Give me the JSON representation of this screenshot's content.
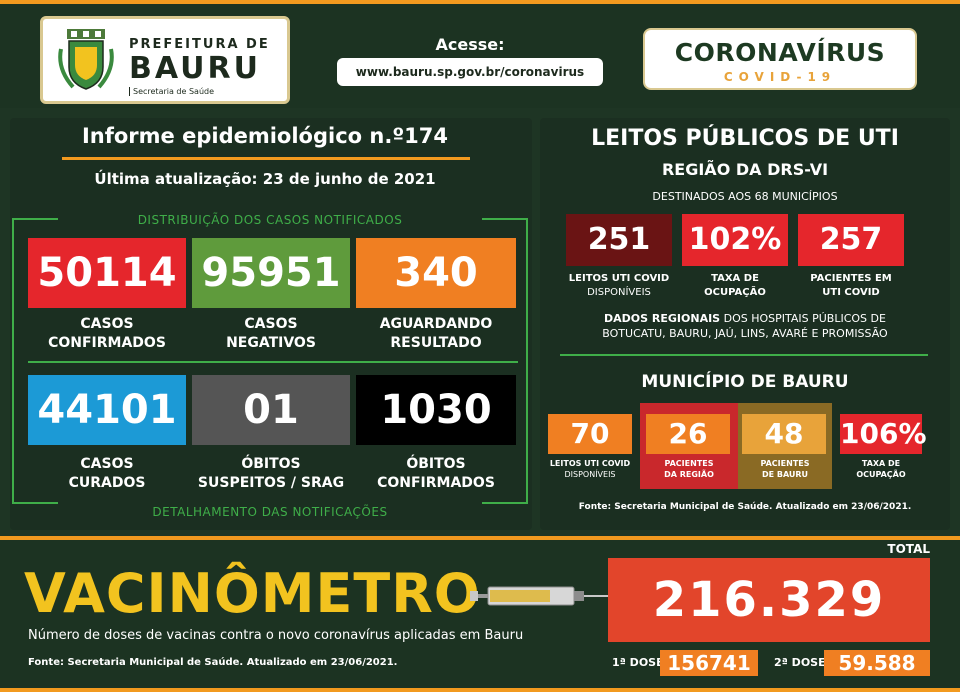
{
  "header": {
    "prefeitura": "PREFEITURA DE",
    "bauru": "BAURU",
    "secretaria": "Secretaria de Saúde",
    "acesse": "Acesse:",
    "url": "www.bauru.sp.gov.br/coronavirus",
    "coronavirus": "CORONAVÍRUS",
    "covid19": "COVID-19"
  },
  "informe": {
    "title": "Informe epidemiológico n.º174",
    "updated": "Última atualização: 23 de junho de 2021",
    "distribution_label": "DISTRIBUIÇÃO DOS CASOS NOTIFICADOS",
    "details_label": "DETALHAMENTO DAS NOTIFICAÇÕES"
  },
  "cases": [
    {
      "value": "50114",
      "line1": "CASOS",
      "line2": "CONFIRMADOS",
      "color": "#e5262c"
    },
    {
      "value": "95951",
      "line1": "CASOS",
      "line2": "NEGATIVOS",
      "color": "#5f9b3c"
    },
    {
      "value": "340",
      "line1": "AGUARDANDO",
      "line2": "RESULTADO",
      "color": "#f07f22"
    },
    {
      "value": "44101",
      "line1": "CASOS",
      "line2": "CURADOS",
      "color": "#1c9ad6"
    },
    {
      "value": "01",
      "line1": "ÓBITOS",
      "line2": "SUSPEITOS / SRAG",
      "color": "#555555"
    },
    {
      "value": "1030",
      "line1": "ÓBITOS",
      "line2": "CONFIRMADOS",
      "color": "#000000"
    }
  ],
  "uti": {
    "title": "LEITOS PÚBLICOS DE UTI",
    "region": "REGIÃO DA DRS-VI",
    "destinados": "DESTINADOS AOS 68 MUNICÍPIOS",
    "boxes": [
      {
        "value": "251",
        "line1": "LEITOS UTI COVID",
        "line2": "DISPONÍVEIS",
        "color": "#6a1414"
      },
      {
        "value": "102%",
        "line1": "TAXA DE",
        "line2": "OCUPAÇÃO",
        "color": "#e5262c"
      },
      {
        "value": "257",
        "line1": "PACIENTES EM",
        "line2": "UTI COVID",
        "color": "#e5262c"
      }
    ],
    "dados_bold": "DADOS REGIONAIS",
    "dados_rest": " DOS HOSPITAIS PÚBLICOS DE",
    "dados_line2": "BOTUCATU, BAURU, JAÚ, LINS, AVARÉ E PROMISSÃO",
    "municipio_title": "MUNICÍPIO DE BAURU",
    "municipio": [
      {
        "value": "70",
        "line1": "LEITOS UTI COVID",
        "line2": "DISPONÍVEIS",
        "color": "#f07f22"
      },
      {
        "value": "26",
        "line1": "PACIENTES",
        "line2": "DA REGIÃO",
        "color": "#f07f22"
      },
      {
        "value": "48",
        "line1": "PACIENTES",
        "line2": "DE BAURU",
        "color": "#e8a33a"
      },
      {
        "value": "106%",
        "line1": "TAXA DE",
        "line2": "OCUPAÇÃO",
        "color": "#e5262c"
      }
    ],
    "fonte": "Fonte: Secretaria Municipal de Saúde. Atualizado em 23/06/2021."
  },
  "vacina": {
    "title": "VACINÔMETRO",
    "subtitle": "Número de doses de vacinas contra o novo coronavírus aplicadas em Bauru",
    "fonte": "Fonte: Secretaria Municipal de Saúde. Atualizado em 23/06/2021.",
    "total_label": "TOTAL",
    "total": "216.329",
    "dose1_label": "1ª DOSE",
    "dose1": "156741",
    "dose2_label": "2ª DOSE",
    "dose2": "59.588"
  }
}
